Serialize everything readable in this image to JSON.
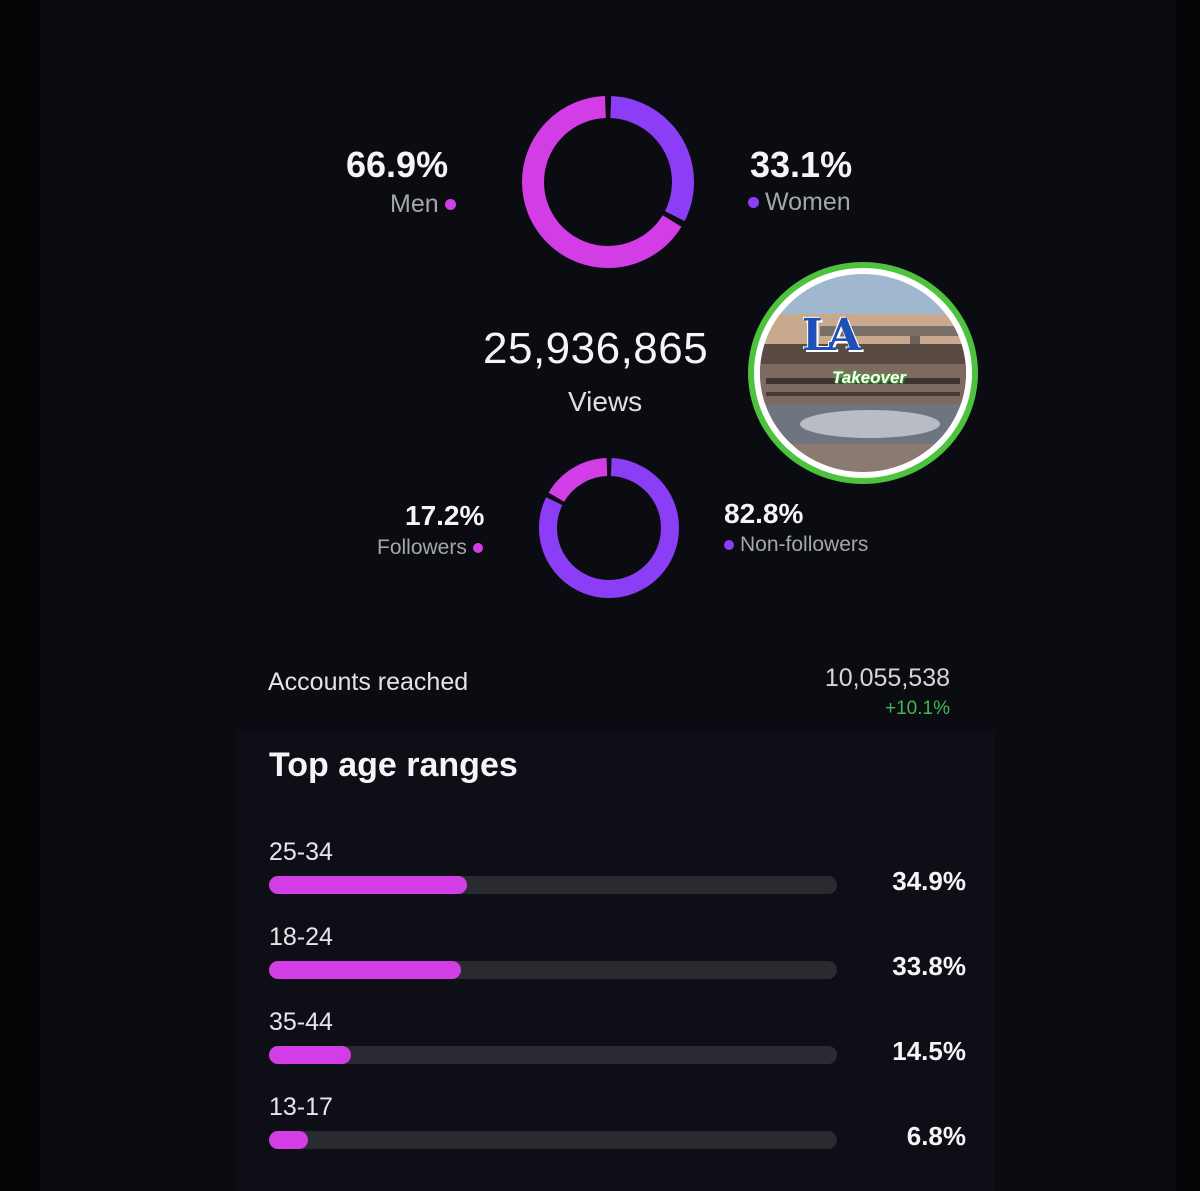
{
  "gender": {
    "men": {
      "pct": "66.9%",
      "label": "Men",
      "value": 66.9
    },
    "women": {
      "pct": "33.1%",
      "label": "Women",
      "value": 33.1
    }
  },
  "views": {
    "count": "25,936,865",
    "label": "Views"
  },
  "audience": {
    "followers": {
      "pct": "17.2%",
      "label": "Followers",
      "value": 17.2
    },
    "non_followers": {
      "pct": "82.8%",
      "label": "Non-followers",
      "value": 82.8
    }
  },
  "reach": {
    "label": "Accounts reached",
    "count": "10,055,538",
    "delta": "+10.1%"
  },
  "age": {
    "title": "Top age ranges",
    "ranges": [
      {
        "label": "25-34",
        "pct": "34.9%",
        "value": 34.9
      },
      {
        "label": "18-24",
        "pct": "33.8%",
        "value": 33.8
      },
      {
        "label": "35-44",
        "pct": "14.5%",
        "value": 14.5
      },
      {
        "label": "13-17",
        "pct": "6.8%",
        "value": 6.8
      }
    ]
  },
  "thumbnail": {
    "logo": "LA",
    "caption": "Takeover"
  },
  "colors": {
    "pink": "#d23de6",
    "purple": "#8b3ef5",
    "track": "#2a2b31",
    "ring_green": "#4cc23d",
    "positive": "#3fb950"
  }
}
